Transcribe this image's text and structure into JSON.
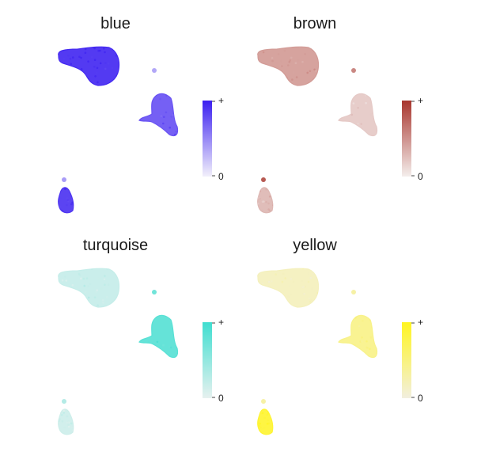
{
  "chart_data": [
    {
      "type": "scatter",
      "title": "blue",
      "color_high": "#3b1ff0",
      "color_low": "#f2f0fb",
      "colorbar": {
        "high_label": "+",
        "low_label": "0"
      },
      "cluster_intensity": {
        "cluster-a": 0.95,
        "cluster-b": 0.75,
        "cluster-c": 0.9,
        "dot-small": 0.35,
        "dot-tail": 0.4
      }
    },
    {
      "type": "scatter",
      "title": "brown",
      "color_high": "#a8352d",
      "color_low": "#f4eeec",
      "colorbar": {
        "high_label": "+",
        "low_label": "0"
      },
      "cluster_intensity": {
        "cluster-a": 0.45,
        "cluster-b": 0.2,
        "cluster-c": 0.3,
        "dot-small": 0.55,
        "dot-tail": 0.8
      }
    },
    {
      "type": "scatter",
      "title": "turquoise",
      "color_high": "#3fded0",
      "color_low": "#e6f1ef",
      "colorbar": {
        "high_label": "+",
        "low_label": "0"
      },
      "cluster_intensity": {
        "cluster-a": 0.2,
        "cluster-b": 0.85,
        "cluster-c": 0.15,
        "dot-small": 0.7,
        "dot-tail": 0.3
      }
    },
    {
      "type": "scatter",
      "title": "yellow",
      "color_high": "#fff520",
      "color_low": "#f2efdf",
      "colorbar": {
        "high_label": "+",
        "low_label": "0"
      },
      "cluster_intensity": {
        "cluster-a": 0.18,
        "cluster-b": 0.45,
        "cluster-c": 0.9,
        "dot-small": 0.3,
        "dot-tail": 0.3
      }
    }
  ]
}
